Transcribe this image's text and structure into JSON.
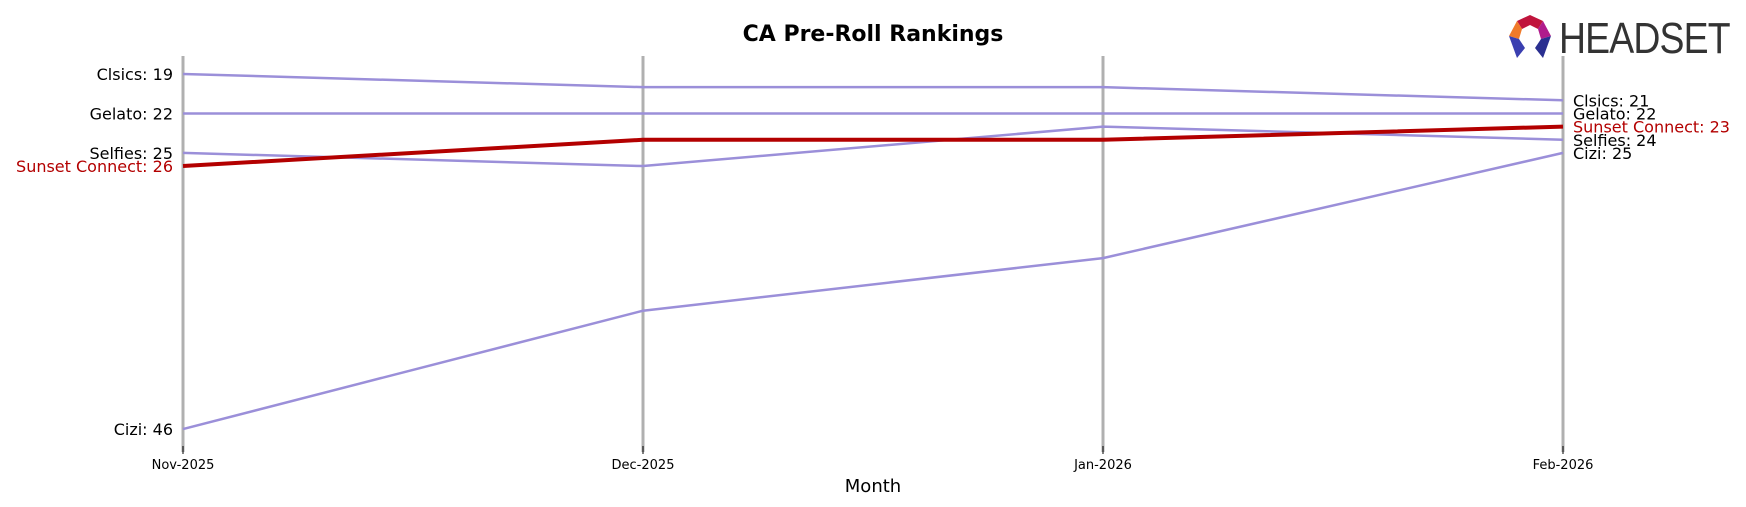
{
  "chart_data": {
    "type": "line",
    "title": "CA Pre-Roll Rankings",
    "xlabel": "Month",
    "ylabel": "",
    "categories": [
      "Nov-2025",
      "Dec-2025",
      "Jan-2026",
      "Feb-2026"
    ],
    "y_inverted": true,
    "series": [
      {
        "name": "Clsics",
        "values": [
          19,
          20,
          20,
          21
        ],
        "color": "#9b8fd9",
        "highlight": false
      },
      {
        "name": "Gelato",
        "values": [
          22,
          22,
          22,
          22
        ],
        "color": "#9b8fd9",
        "highlight": false
      },
      {
        "name": "Selfies",
        "values": [
          25,
          26,
          23,
          24
        ],
        "color": "#9b8fd9",
        "highlight": false
      },
      {
        "name": "Sunset Connect",
        "values": [
          26,
          24,
          24,
          23
        ],
        "color": "#b30000",
        "highlight": true
      },
      {
        "name": "Cizi",
        "values": [
          46,
          37,
          33,
          25
        ],
        "color": "#9b8fd9",
        "highlight": false
      }
    ],
    "left_labels": [
      "Clsics: 19",
      "Gelato: 22",
      "Selfies: 25",
      "Sunset Connect: 26",
      "Cizi: 46"
    ],
    "right_labels": [
      "Clsics: 21",
      "Gelato: 22",
      "Sunset Connect: 23",
      "Selfies: 24",
      "Cizi: 25"
    ],
    "grid": "vertical lines at each month"
  },
  "header": {
    "title": "CA Pre-Roll Rankings"
  },
  "logo": {
    "text": "HEADSET"
  },
  "colors": {
    "highlight": "#b30000",
    "other": "#9b8fd9",
    "gridline": "#b0b0b0"
  }
}
